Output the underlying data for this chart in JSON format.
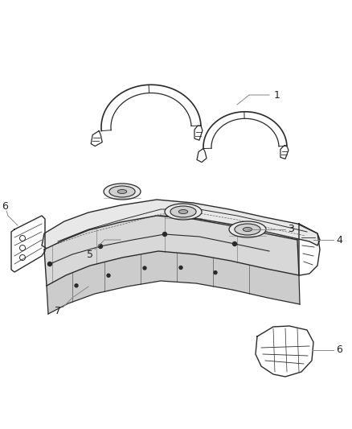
{
  "background_color": "#ffffff",
  "line_color": "#2a2a2a",
  "label_color": "#222222",
  "leader_color": "#888888",
  "figsize": [
    4.38,
    5.33
  ],
  "dpi": 100
}
